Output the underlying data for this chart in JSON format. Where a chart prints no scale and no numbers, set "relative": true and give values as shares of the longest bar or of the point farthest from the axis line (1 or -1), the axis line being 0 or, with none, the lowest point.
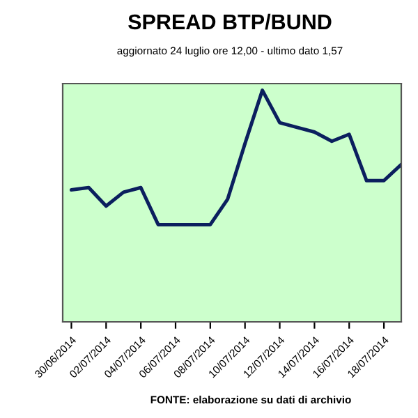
{
  "chart_data": {
    "type": "line",
    "title": "SPREAD BTP/BUND",
    "subtitle": "aggiornato 24 luglio ore 12,00 - ultimo dato 1,57",
    "annotations": [
      "FONTE: elaborazione su dati di archivio"
    ],
    "relative": true,
    "legend": false,
    "x": [
      "2014-06-30",
      "2014-07-01",
      "2014-07-02",
      "2014-07-03",
      "2014-07-04",
      "2014-07-05",
      "2014-07-06",
      "2014-07-07",
      "2014-07-08",
      "2014-07-09",
      "2014-07-10",
      "2014-07-11",
      "2014-07-12",
      "2014-07-13",
      "2014-07-14",
      "2014-07-15",
      "2014-07-16",
      "2014-07-17",
      "2014-07-18",
      "2014-07-19"
    ],
    "xlim": [
      "2014-06-29T12:00",
      "2014-07-19T00:00"
    ],
    "xticks": [
      {
        "value": "2014-06-30",
        "label": "30/06/2014"
      },
      {
        "value": "2014-07-02",
        "label": "02/07/2014"
      },
      {
        "value": "2014-07-04",
        "label": "04/07/2014"
      },
      {
        "value": "2014-07-06",
        "label": "06/07/2014"
      },
      {
        "value": "2014-07-08",
        "label": "08/07/2014"
      },
      {
        "value": "2014-07-10",
        "label": "10/07/2014"
      },
      {
        "value": "2014-07-12",
        "label": "12/07/2014"
      },
      {
        "value": "2014-07-14",
        "label": "14/07/2014"
      },
      {
        "value": "2014-07-16",
        "label": "16/07/2014"
      },
      {
        "value": "2014-07-18",
        "label": "18/07/2014"
      }
    ],
    "series": [
      {
        "color": "#0b1f5e",
        "values": [
          0.57,
          0.58,
          0.5,
          0.56,
          0.58,
          0.42,
          0.42,
          0.42,
          0.42,
          0.53,
          0.77,
          1,
          0.86,
          0.84,
          0.82,
          0.78,
          0.81,
          0.61,
          0.61,
          0.68
        ]
      }
    ]
  }
}
